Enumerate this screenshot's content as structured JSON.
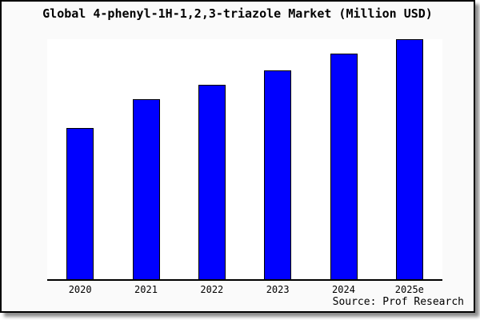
{
  "chart_data": {
    "type": "bar",
    "title": "Global 4-phenyl-1H-1,2,3-triazole Market (Million USD)",
    "categories": [
      "2020",
      "2021",
      "2022",
      "2023",
      "2024",
      "2025e"
    ],
    "series": [
      {
        "name": "Global 4-phenyl-1H-1,2,3-triazole market size",
        "values": [
          63,
          75,
          81,
          87,
          94,
          100
        ]
      }
    ],
    "value_scale": "relative units (y-axis has no tick labels; values estimated from bar heights, max bar = 100)",
    "ylim": [
      0,
      100
    ],
    "xlabel": "",
    "ylabel": "",
    "grid": false,
    "legend": false,
    "bar_color": "#0000ff",
    "bar_border_color": "#000000",
    "source": "Source: Prof Research"
  },
  "colors": {
    "card_background": "#fafafa",
    "plot_background": "#ffffff",
    "axis": "#000000",
    "text": "#000000"
  }
}
